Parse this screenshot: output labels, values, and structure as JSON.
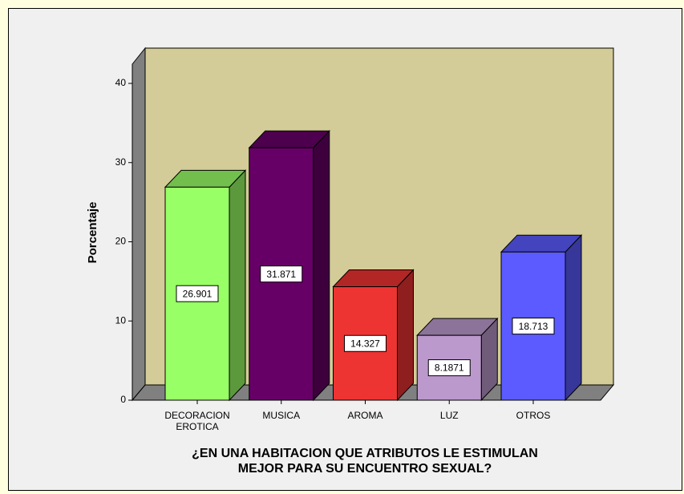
{
  "chart_data": {
    "type": "bar3d",
    "categories": [
      "DECORACION EROTICA",
      "MUSICA",
      "AROMA",
      "LUZ",
      "OTROS"
    ],
    "values": [
      26.901,
      31.871,
      14.327,
      8.1871,
      18.713
    ],
    "colors": [
      "#99ff66",
      "#660066",
      "#ee3333",
      "#bb99cc",
      "#5b5bff"
    ],
    "y_label": "Porcentaje",
    "x_label": [
      "¿EN UNA HABITACION QUE ATRIBUTOS LE ESTIMULAN",
      "MEJOR PARA SU ENCUENTRO SEXUAL?"
    ],
    "ylim": [
      0,
      40
    ],
    "yticks": [
      0,
      10,
      20,
      30,
      40
    ]
  }
}
